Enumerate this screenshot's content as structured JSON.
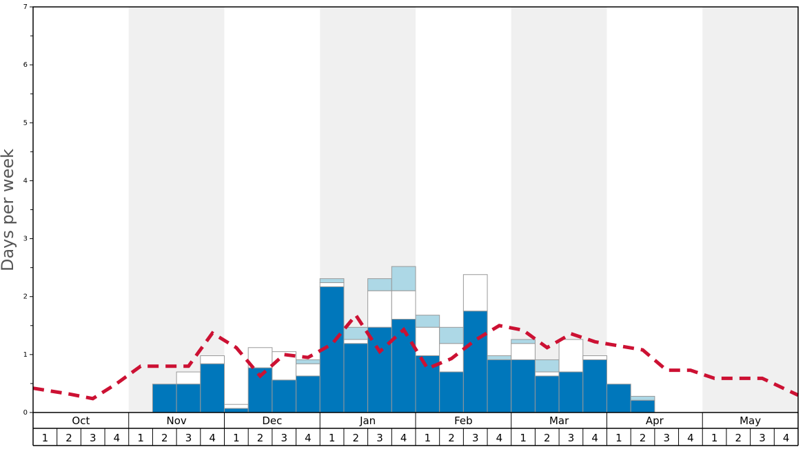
{
  "chart_data": {
    "type": "bar",
    "ylabel": "Days per week",
    "ylim": [
      0,
      7
    ],
    "yticks": [
      0,
      1,
      2,
      3,
      4,
      5,
      6,
      7
    ],
    "months": [
      "Oct",
      "Nov",
      "Dec",
      "Jan",
      "Feb",
      "Mar",
      "Apr",
      "May"
    ],
    "weeks": [
      "1",
      "2",
      "3",
      "4"
    ],
    "shaded_months": [
      "Nov",
      "Jan",
      "Mar",
      "May"
    ],
    "grid": false,
    "colors": {
      "dark_blue": "#0077bb",
      "light_blue": "#add8e6",
      "white": "#ffffff",
      "outline": "#999999",
      "dashed_line": "#cc1133",
      "shade": "#f0f0f0"
    },
    "bars": [
      {
        "month": "Oct",
        "week": 1,
        "dark": 0,
        "white_top": 0,
        "light_top": 0
      },
      {
        "month": "Oct",
        "week": 2,
        "dark": 0,
        "white_top": 0,
        "light_top": 0
      },
      {
        "month": "Oct",
        "week": 3,
        "dark": 0,
        "white_top": 0,
        "light_top": 0
      },
      {
        "month": "Oct",
        "week": 4,
        "dark": 0,
        "white_top": 0,
        "light_top": 0
      },
      {
        "month": "Nov",
        "week": 1,
        "dark": 0,
        "white_top": 0,
        "light_top": 0
      },
      {
        "month": "Nov",
        "week": 2,
        "dark": 0.49,
        "white_top": 0.49,
        "light_top": 0.49
      },
      {
        "month": "Nov",
        "week": 3,
        "dark": 0.49,
        "white_top": 0.7,
        "light_top": 0.7
      },
      {
        "month": "Nov",
        "week": 4,
        "dark": 0.84,
        "white_top": 0.98,
        "light_top": 0.98
      },
      {
        "month": "Dec",
        "week": 1,
        "dark": 0.07,
        "white_top": 0.14,
        "light_top": 0.14
      },
      {
        "month": "Dec",
        "week": 2,
        "dark": 0.77,
        "white_top": 1.12,
        "light_top": 1.12
      },
      {
        "month": "Dec",
        "week": 3,
        "dark": 0.56,
        "white_top": 1.05,
        "light_top": 1.05
      },
      {
        "month": "Dec",
        "week": 4,
        "dark": 0.63,
        "white_top": 0.84,
        "light_top": 0.91
      },
      {
        "month": "Jan",
        "week": 1,
        "dark": 2.17,
        "white_top": 2.24,
        "light_top": 2.31
      },
      {
        "month": "Jan",
        "week": 2,
        "dark": 1.19,
        "white_top": 1.26,
        "light_top": 1.47
      },
      {
        "month": "Jan",
        "week": 3,
        "dark": 1.47,
        "white_top": 2.1,
        "light_top": 2.31
      },
      {
        "month": "Jan",
        "week": 4,
        "dark": 1.61,
        "white_top": 2.1,
        "light_top": 2.52
      },
      {
        "month": "Feb",
        "week": 1,
        "dark": 0.98,
        "white_top": 1.47,
        "light_top": 1.68
      },
      {
        "month": "Feb",
        "week": 2,
        "dark": 0.7,
        "white_top": 1.19,
        "light_top": 1.47
      },
      {
        "month": "Feb",
        "week": 3,
        "dark": 1.75,
        "white_top": 2.38,
        "light_top": 2.38
      },
      {
        "month": "Feb",
        "week": 4,
        "dark": 0.91,
        "white_top": 0.91,
        "light_top": 0.98
      },
      {
        "month": "Mar",
        "week": 1,
        "dark": 0.91,
        "white_top": 1.19,
        "light_top": 1.26
      },
      {
        "month": "Mar",
        "week": 2,
        "dark": 0.63,
        "white_top": 0.7,
        "light_top": 0.91
      },
      {
        "month": "Mar",
        "week": 3,
        "dark": 0.7,
        "white_top": 1.26,
        "light_top": 1.26
      },
      {
        "month": "Mar",
        "week": 4,
        "dark": 0.91,
        "white_top": 0.98,
        "light_top": 0.98
      },
      {
        "month": "Apr",
        "week": 1,
        "dark": 0.49,
        "white_top": 0.49,
        "light_top": 0.49
      },
      {
        "month": "Apr",
        "week": 2,
        "dark": 0.21,
        "white_top": 0.21,
        "light_top": 0.28
      },
      {
        "month": "Apr",
        "week": 3,
        "dark": 0,
        "white_top": 0,
        "light_top": 0
      },
      {
        "month": "Apr",
        "week": 4,
        "dark": 0,
        "white_top": 0,
        "light_top": 0
      },
      {
        "month": "May",
        "week": 1,
        "dark": 0,
        "white_top": 0,
        "light_top": 0
      },
      {
        "month": "May",
        "week": 2,
        "dark": 0,
        "white_top": 0,
        "light_top": 0
      },
      {
        "month": "May",
        "week": 3,
        "dark": 0,
        "white_top": 0,
        "light_top": 0
      },
      {
        "month": "May",
        "week": 4,
        "dark": 0,
        "white_top": 0,
        "light_top": 0
      }
    ],
    "line_series": {
      "style": "dashed",
      "x": [
        "Oct 1",
        "Oct 2",
        "Oct 3",
        "Oct 4",
        "Nov 1",
        "Nov 2",
        "Nov 3",
        "Nov 4",
        "Dec 1",
        "Dec 2",
        "Dec 3",
        "Dec 4",
        "Jan 1",
        "Jan 2",
        "Jan 3",
        "Jan 4",
        "Feb 1",
        "Feb 2",
        "Feb 3",
        "Feb 4",
        "Mar 1",
        "Mar 2",
        "Mar 3",
        "Mar 4",
        "Apr 1",
        "Apr 2",
        "Apr 3",
        "Apr 4",
        "May 1",
        "May 2",
        "May 3",
        "May 4"
      ],
      "values": [
        0.42,
        0.32,
        0.24,
        0.5,
        0.8,
        0.8,
        0.8,
        1.37,
        1.12,
        0.63,
        1.0,
        0.95,
        1.18,
        1.68,
        1.05,
        1.43,
        0.76,
        0.93,
        1.25,
        1.5,
        1.42,
        1.12,
        1.36,
        1.22,
        1.15,
        1.08,
        0.73,
        0.73,
        0.59,
        0.59,
        0.59,
        0.3
      ]
    }
  }
}
